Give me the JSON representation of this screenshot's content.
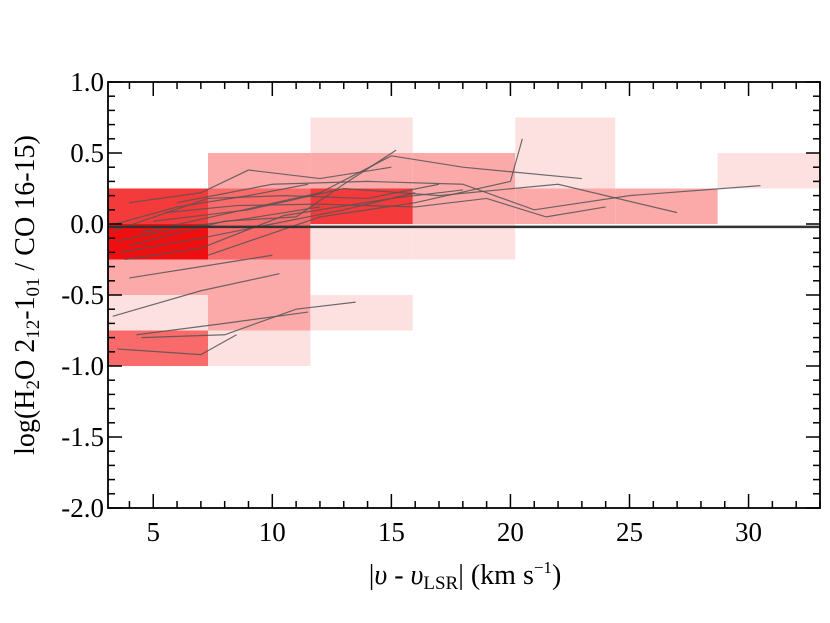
{
  "chart_data": {
    "type": "heatmap",
    "xlabel_parts": [
      "|",
      "υ",
      " - ",
      "υ",
      "LSR",
      "| (km s",
      "−1",
      ")"
    ],
    "ylabel_parts": [
      "log(H",
      "2",
      "O 2",
      "12",
      "-1",
      "01",
      " / CO 16-15)"
    ],
    "xlim": [
      3.1,
      33.0
    ],
    "ylim": [
      -2.0,
      1.0
    ],
    "xticks": [
      5,
      10,
      15,
      20,
      25,
      30
    ],
    "yticks": [
      1.0,
      0.5,
      0.0,
      -0.5,
      -1.0,
      -1.5,
      -2.0
    ],
    "xtick_labels": [
      "5",
      "10",
      "15",
      "20",
      "25",
      "30"
    ],
    "ytick_labels": [
      "1.0",
      "0.5",
      "0.0",
      "-0.5",
      "-1.0",
      "-1.5",
      "-2.0"
    ],
    "reference_line_y": -0.02,
    "colors": {
      "bin_1": "#fde1e1",
      "bin_2": "#fca9a9",
      "bin_3": "#f96a6a",
      "bin_4": "#f43a3a",
      "bin_5": "#ee1010",
      "source_line": "#555555",
      "reference_line": "#333333"
    },
    "cells": [
      {
        "x0": 3.1,
        "x1": 7.3,
        "y0": -1.0,
        "y1": -0.75,
        "level": 3
      },
      {
        "x0": 3.1,
        "x1": 7.3,
        "y0": -0.75,
        "y1": -0.5,
        "level": 1
      },
      {
        "x0": 3.1,
        "x1": 7.3,
        "y0": -0.5,
        "y1": -0.25,
        "level": 2
      },
      {
        "x0": 3.1,
        "x1": 7.3,
        "y0": -0.25,
        "y1": 0.0,
        "level": 5
      },
      {
        "x0": 3.1,
        "x1": 7.3,
        "y0": 0.0,
        "y1": 0.25,
        "level": 4
      },
      {
        "x0": 7.3,
        "x1": 11.6,
        "y0": -1.0,
        "y1": -0.75,
        "level": 1
      },
      {
        "x0": 7.3,
        "x1": 11.6,
        "y0": -0.75,
        "y1": -0.25,
        "level": 2
      },
      {
        "x0": 7.3,
        "x1": 11.6,
        "y0": -0.25,
        "y1": 0.0,
        "level": 3
      },
      {
        "x0": 7.3,
        "x1": 11.6,
        "y0": 0.0,
        "y1": 0.25,
        "level": 3
      },
      {
        "x0": 7.3,
        "x1": 11.6,
        "y0": 0.25,
        "y1": 0.5,
        "level": 2
      },
      {
        "x0": 11.6,
        "x1": 15.9,
        "y0": -0.75,
        "y1": -0.5,
        "level": 1
      },
      {
        "x0": 11.6,
        "x1": 15.9,
        "y0": -0.25,
        "y1": 0.0,
        "level": 1
      },
      {
        "x0": 11.6,
        "x1": 15.9,
        "y0": 0.0,
        "y1": 0.25,
        "level": 4
      },
      {
        "x0": 11.6,
        "x1": 15.9,
        "y0": 0.25,
        "y1": 0.5,
        "level": 2
      },
      {
        "x0": 11.6,
        "x1": 15.9,
        "y0": 0.5,
        "y1": 0.75,
        "level": 1
      },
      {
        "x0": 15.9,
        "x1": 20.2,
        "y0": -0.25,
        "y1": 0.0,
        "level": 1
      },
      {
        "x0": 15.9,
        "x1": 20.2,
        "y0": 0.0,
        "y1": 0.25,
        "level": 2
      },
      {
        "x0": 15.9,
        "x1": 20.2,
        "y0": 0.25,
        "y1": 0.5,
        "level": 2
      },
      {
        "x0": 20.2,
        "x1": 24.4,
        "y0": 0.0,
        "y1": 0.25,
        "level": 2
      },
      {
        "x0": 20.2,
        "x1": 24.4,
        "y0": 0.25,
        "y1": 0.75,
        "level": 1
      },
      {
        "x0": 24.4,
        "x1": 28.7,
        "y0": 0.0,
        "y1": 0.25,
        "level": 2
      },
      {
        "x0": 28.7,
        "x1": 33.0,
        "y0": 0.25,
        "y1": 0.5,
        "level": 1
      }
    ],
    "source_lines": [
      [
        [
          3.3,
          -0.65
        ],
        [
          7.0,
          -0.47
        ],
        [
          10.3,
          -0.35
        ]
      ],
      [
        [
          4.3,
          -0.78
        ],
        [
          8.0,
          -0.7
        ],
        [
          11.5,
          -0.62
        ]
      ],
      [
        [
          3.5,
          -0.88
        ],
        [
          7.0,
          -0.92
        ],
        [
          8.5,
          -0.78
        ]
      ],
      [
        [
          4.5,
          -0.8
        ],
        [
          8.0,
          -0.78
        ],
        [
          11.0,
          -0.6
        ],
        [
          13.5,
          -0.55
        ]
      ],
      [
        [
          4.0,
          -0.38
        ],
        [
          7.0,
          -0.3
        ],
        [
          10.0,
          -0.22
        ]
      ],
      [
        [
          3.5,
          -0.12
        ],
        [
          6.0,
          -0.03
        ],
        [
          9.0,
          0.04
        ],
        [
          12.0,
          0.12
        ]
      ],
      [
        [
          3.4,
          0.0
        ],
        [
          6.0,
          0.12
        ],
        [
          9.0,
          0.2
        ],
        [
          11.5,
          0.28
        ]
      ],
      [
        [
          4.0,
          0.15
        ],
        [
          7.0,
          0.22
        ],
        [
          9.0,
          0.38
        ],
        [
          12.0,
          0.32
        ],
        [
          15.0,
          0.4
        ]
      ],
      [
        [
          3.6,
          -0.2
        ],
        [
          7.0,
          -0.1
        ],
        [
          10.0,
          0.0
        ],
        [
          13.0,
          0.1
        ],
        [
          16.0,
          0.22
        ]
      ],
      [
        [
          4.5,
          -0.06
        ],
        [
          8.0,
          0.07
        ],
        [
          12.0,
          0.22
        ],
        [
          15.0,
          0.48
        ],
        [
          18.0,
          0.4
        ],
        [
          23.0,
          0.32
        ]
      ],
      [
        [
          3.8,
          -0.25
        ],
        [
          7.0,
          -0.17
        ],
        [
          10.5,
          0.06
        ],
        [
          15.0,
          0.18
        ],
        [
          18.0,
          0.24
        ]
      ],
      [
        [
          5.0,
          0.02
        ],
        [
          9.0,
          0.1
        ],
        [
          13.0,
          0.25
        ],
        [
          17.0,
          0.2
        ],
        [
          22.0,
          0.28
        ],
        [
          27.0,
          0.08
        ]
      ],
      [
        [
          6.0,
          0.15
        ],
        [
          10.0,
          0.28
        ],
        [
          14.0,
          0.3
        ],
        [
          18.0,
          0.28
        ],
        [
          21.0,
          0.1
        ],
        [
          25.0,
          0.2
        ],
        [
          30.5,
          0.27
        ]
      ],
      [
        [
          4.0,
          -0.15
        ],
        [
          8.0,
          0.02
        ],
        [
          11.0,
          0.05
        ],
        [
          13.0,
          0.28
        ],
        [
          15.2,
          0.52
        ]
      ],
      [
        [
          7.3,
          -0.22
        ],
        [
          12.0,
          0.05
        ],
        [
          16.0,
          0.15
        ],
        [
          20.0,
          0.3
        ],
        [
          20.5,
          0.6
        ]
      ],
      [
        [
          5.5,
          0.08
        ],
        [
          8.5,
          0.13
        ],
        [
          12.0,
          0.14
        ],
        [
          16.0,
          0.12
        ],
        [
          19.0,
          0.18
        ],
        [
          21.5,
          0.05
        ],
        [
          24.0,
          0.12
        ]
      ],
      [
        [
          3.3,
          -0.05
        ],
        [
          7.3,
          0.18
        ],
        [
          10.5,
          0.2
        ],
        [
          14.0,
          0.18
        ],
        [
          17.0,
          0.28
        ]
      ]
    ]
  }
}
